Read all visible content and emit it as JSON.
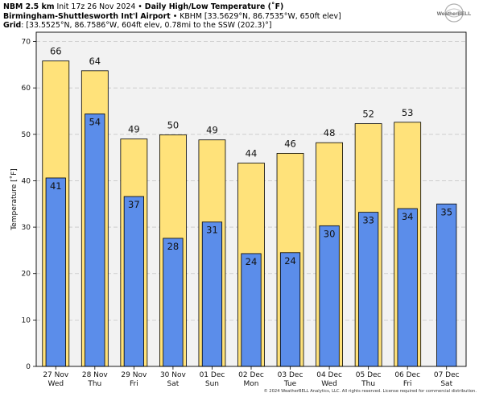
{
  "header": {
    "line1_bold": "NBM 2.5 km",
    "line1_rest": " Init 17z 26 Nov 2024 • ",
    "line1_bold2": "Daily High/Low Temperature (˚F)",
    "line2_bold": "Birmingham-Shuttlesworth Int'l Airport",
    "line2_rest": " • KBHM [33.5629°N, 86.7535°W, 650ft elev]",
    "line3_bold": "Grid",
    "line3_rest": ": [33.5525°N, 86.7586°W, 604ft elev, 0.78mi to the SSW (202.3)°]"
  },
  "logo": {
    "text": "WeatherBELL"
  },
  "footer": "© 2024 WeatherBELL Analytics, LLC. All rights reserved. License required for commercial distribution.",
  "colors": {
    "high": "#ffe27a",
    "low": "#5b8dea",
    "plot_bg": "#f2f2f2",
    "grid": "#c8c8c8"
  },
  "chart_data": {
    "type": "bar",
    "ylabel": "Temperature [˚F]",
    "ylim": [
      0,
      72
    ],
    "yticks": [
      0,
      10,
      20,
      30,
      40,
      50,
      60,
      70
    ],
    "grid": true,
    "categories": [
      {
        "date": "27 Nov",
        "day": "Wed"
      },
      {
        "date": "28 Nov",
        "day": "Thu"
      },
      {
        "date": "29 Nov",
        "day": "Fri"
      },
      {
        "date": "30 Nov",
        "day": "Sat"
      },
      {
        "date": "01 Dec",
        "day": "Sun"
      },
      {
        "date": "02 Dec",
        "day": "Mon"
      },
      {
        "date": "03 Dec",
        "day": "Tue"
      },
      {
        "date": "04 Dec",
        "day": "Wed"
      },
      {
        "date": "05 Dec",
        "day": "Thu"
      },
      {
        "date": "06 Dec",
        "day": "Fri"
      },
      {
        "date": "07 Dec",
        "day": "Sat"
      }
    ],
    "series": [
      {
        "values": [
          65.8,
          63.7,
          49.0,
          49.9,
          48.8,
          43.8,
          45.9,
          48.2,
          52.3,
          52.6,
          null
        ],
        "labels": [
          "66",
          "64",
          "49",
          "50",
          "49",
          "44",
          "46",
          "48",
          "52",
          "53",
          null
        ]
      },
      {
        "values": [
          40.6,
          54.4,
          36.6,
          27.6,
          31.1,
          24.3,
          24.5,
          30.3,
          33.2,
          34.0,
          35.0
        ],
        "labels": [
          "41",
          "54",
          "37",
          "28",
          "31",
          "24",
          "24",
          "30",
          "33",
          "34",
          "35"
        ]
      }
    ]
  }
}
